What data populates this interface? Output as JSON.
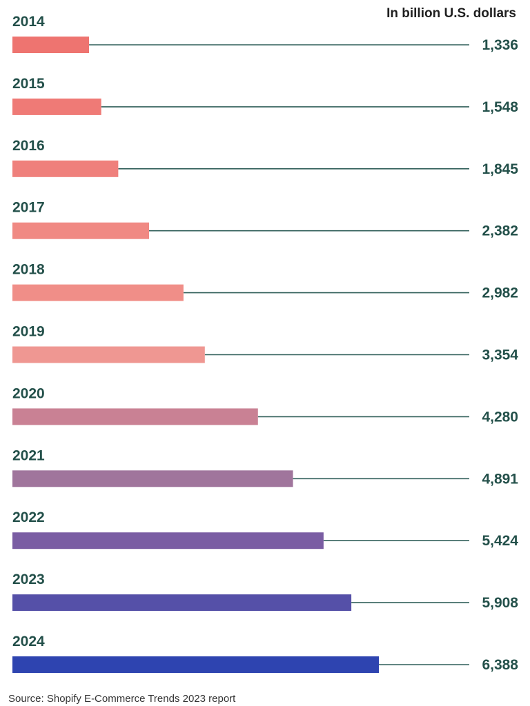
{
  "chart_data": {
    "type": "bar",
    "orientation": "horizontal",
    "unit_label": "In billion U.S. dollars",
    "source": "Source: Shopify E-Commerce Trends 2023 report",
    "categories": [
      "2014",
      "2015",
      "2016",
      "2017",
      "2018",
      "2019",
      "2020",
      "2021",
      "2022",
      "2023",
      "2024"
    ],
    "values": [
      1336,
      1548,
      1845,
      2382,
      2982,
      3354,
      4280,
      4891,
      5424,
      5908,
      6388
    ],
    "value_labels": [
      "1,336",
      "1,548",
      "1,845",
      "2,382",
      "2,982",
      "3,354",
      "4,280",
      "4,891",
      "5,424",
      "5,908",
      "6,388"
    ],
    "bar_colors": [
      "#ee7470",
      "#ef7a76",
      "#ef807c",
      "#f08983",
      "#f08e88",
      "#ef9792",
      "#c98194",
      "#a0759c",
      "#7a5da3",
      "#5550a8",
      "#2e44b0"
    ],
    "xlim": [
      0,
      7400
    ],
    "grid": false,
    "legend": "none"
  }
}
